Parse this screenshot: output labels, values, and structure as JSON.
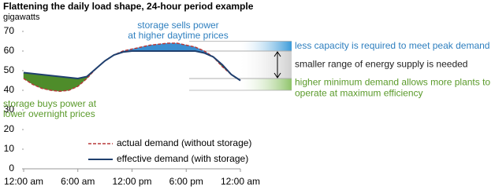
{
  "chart_data": {
    "type": "line",
    "title": "Flattening the daily load shape, 24-hour period example",
    "y_label": "gigawatts",
    "x": [
      0,
      1,
      2,
      3,
      4,
      5,
      6,
      7,
      8,
      9,
      10,
      11,
      12,
      13,
      14,
      15,
      16,
      17,
      18,
      19,
      20,
      21,
      22,
      23,
      24
    ],
    "series": [
      {
        "name": "actual demand (without storage)",
        "color": "#b83a3a",
        "dashed": true,
        "values": [
          46,
          43,
          41,
          40,
          39.5,
          40,
          42,
          46,
          51,
          55,
          58,
          60,
          61,
          62,
          63,
          63.5,
          64,
          64,
          63,
          62,
          60,
          57,
          52,
          48,
          45
        ]
      },
      {
        "name": "effective demand (with storage)",
        "color": "#1f3f6e",
        "dashed": false,
        "values": [
          49,
          48.5,
          48,
          47.5,
          47,
          46.5,
          46,
          47,
          51,
          55,
          58,
          59.5,
          60,
          60,
          60,
          60,
          60,
          60,
          60,
          60,
          59,
          57,
          53,
          48,
          45
        ]
      }
    ],
    "fill_colors": {
      "sell": "#3a8fd1",
      "buy": "#4e8c2a"
    },
    "xlim": [
      0,
      24
    ],
    "xticks": [
      {
        "value": 0,
        "label": "12:00 am"
      },
      {
        "value": 6,
        "label": "6:00 am"
      },
      {
        "value": 12,
        "label": "12:00 pm"
      },
      {
        "value": 18,
        "label": "6:00 pm"
      },
      {
        "value": 24,
        "label": "12:00 am"
      }
    ],
    "ylim": [
      0,
      70
    ],
    "yticks": [
      0,
      10,
      20,
      30,
      40,
      50,
      60,
      70
    ],
    "annotations": [
      {
        "lines": [
          "storage sells power",
          "at higher daytime prices"
        ],
        "color": "#2e7fbf"
      },
      {
        "lines": [
          "storage buys power at",
          "lower overnight prices"
        ],
        "color": "#5a9a2a"
      }
    ],
    "bands": [
      {
        "from": 60,
        "to": 65,
        "color": "#3a9ad9",
        "lines": [
          "less capacity is required to meet peak demand"
        ],
        "text_color": "#2e7fbf"
      },
      {
        "from": 46,
        "to": 60,
        "color": "#d0d0d0",
        "lines": [
          "smaller range of energy supply is needed"
        ],
        "text_color": "#222222"
      },
      {
        "from": 40,
        "to": 46,
        "color": "#8fc46a",
        "lines": [
          "higher minimum demand allows more plants to",
          "operate at maximum efficiency"
        ],
        "text_color": "#5a9a2a"
      }
    ]
  }
}
